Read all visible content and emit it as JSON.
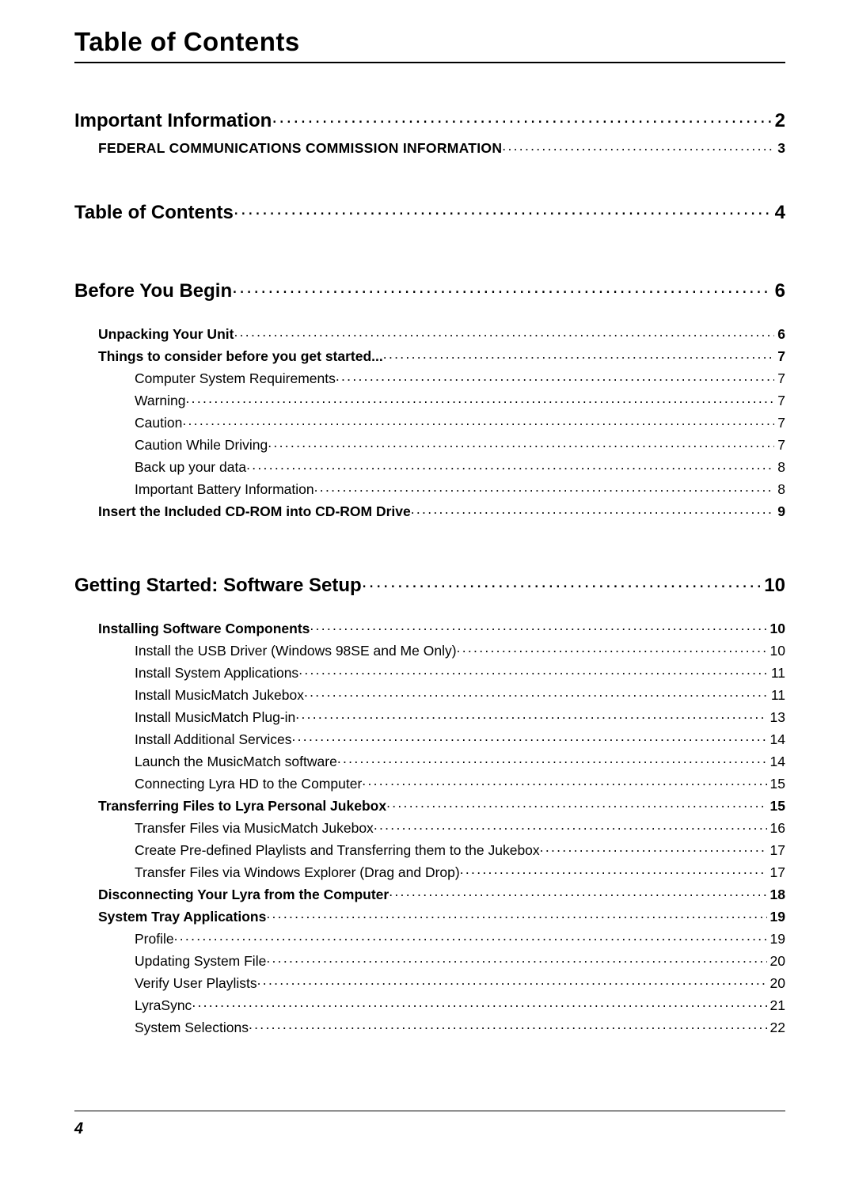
{
  "header": {
    "title": "Table of Contents"
  },
  "footer": {
    "pageNumber": "4"
  },
  "toc": [
    {
      "level": 1,
      "title": "Important Information",
      "page": "2"
    },
    {
      "level": 2,
      "caps": true,
      "title": "FEDERAL COMMUNICATIONS COMMISSION INFORMATION",
      "page": "3"
    },
    {
      "gap": "md"
    },
    {
      "level": 1,
      "title": "Table of Contents",
      "page": "4"
    },
    {
      "gap": "lg"
    },
    {
      "level": 1,
      "title": "Before You Begin",
      "page": "6"
    },
    {
      "gap": "sm"
    },
    {
      "level": 2,
      "title": "Unpacking Your Unit",
      "page": "6"
    },
    {
      "level": 2,
      "title": "Things to consider before you get started...",
      "page": "7"
    },
    {
      "level": 3,
      "title": "Computer System Requirements",
      "page": "7"
    },
    {
      "level": 3,
      "title": "Warning",
      "page": "7"
    },
    {
      "level": 3,
      "title": "Caution",
      "page": "7"
    },
    {
      "level": 3,
      "title": "Caution While Driving",
      "page": "7"
    },
    {
      "level": 3,
      "title": "Back up your data",
      "page": "8"
    },
    {
      "level": 3,
      "title": "Important Battery Information",
      "page": "8"
    },
    {
      "level": 2,
      "title": "Insert the Included CD-ROM into CD-ROM Drive",
      "page": "9"
    },
    {
      "gap": "lg"
    },
    {
      "level": 1,
      "title": "Getting Started: Software Setup",
      "page": "10"
    },
    {
      "gap": "sm"
    },
    {
      "level": 2,
      "title": "Installing Software Components",
      "page": "10"
    },
    {
      "level": 3,
      "title": "Install the USB Driver (Windows 98SE and Me Only)",
      "page": "10"
    },
    {
      "level": 3,
      "title": "Install System Applications",
      "page": "11"
    },
    {
      "level": 3,
      "title": "Install MusicMatch Jukebox",
      "page": "11"
    },
    {
      "level": 3,
      "title": "Install MusicMatch Plug-in",
      "page": "13"
    },
    {
      "level": 3,
      "title": "Install Additional Services",
      "page": "14"
    },
    {
      "level": 3,
      "title": "Launch the MusicMatch software",
      "page": "14"
    },
    {
      "level": 3,
      "title": "Connecting Lyra HD to the Computer",
      "page": "15"
    },
    {
      "level": 2,
      "title": "Transferring Files to Lyra Personal Jukebox",
      "page": "15"
    },
    {
      "level": 3,
      "title": "Transfer Files via MusicMatch Jukebox",
      "page": "16"
    },
    {
      "level": 3,
      "title": "Create Pre-defined Playlists and Transferring them to the Jukebox",
      "page": "17"
    },
    {
      "level": 3,
      "title": "Transfer Files via Windows Explorer (Drag and Drop)",
      "page": "17"
    },
    {
      "level": 2,
      "title": "Disconnecting Your Lyra from the Computer",
      "page": "18"
    },
    {
      "level": 2,
      "title": "System Tray Applications",
      "page": "19"
    },
    {
      "level": 3,
      "title": "Profile",
      "page": "19"
    },
    {
      "level": 3,
      "title": "Updating System File",
      "page": "20"
    },
    {
      "level": 3,
      "title": "Verify User Playlists",
      "page": "20"
    },
    {
      "level": 3,
      "title": "LyraSync",
      "page": "21"
    },
    {
      "level": 3,
      "title": "System Selections",
      "page": "22"
    }
  ]
}
